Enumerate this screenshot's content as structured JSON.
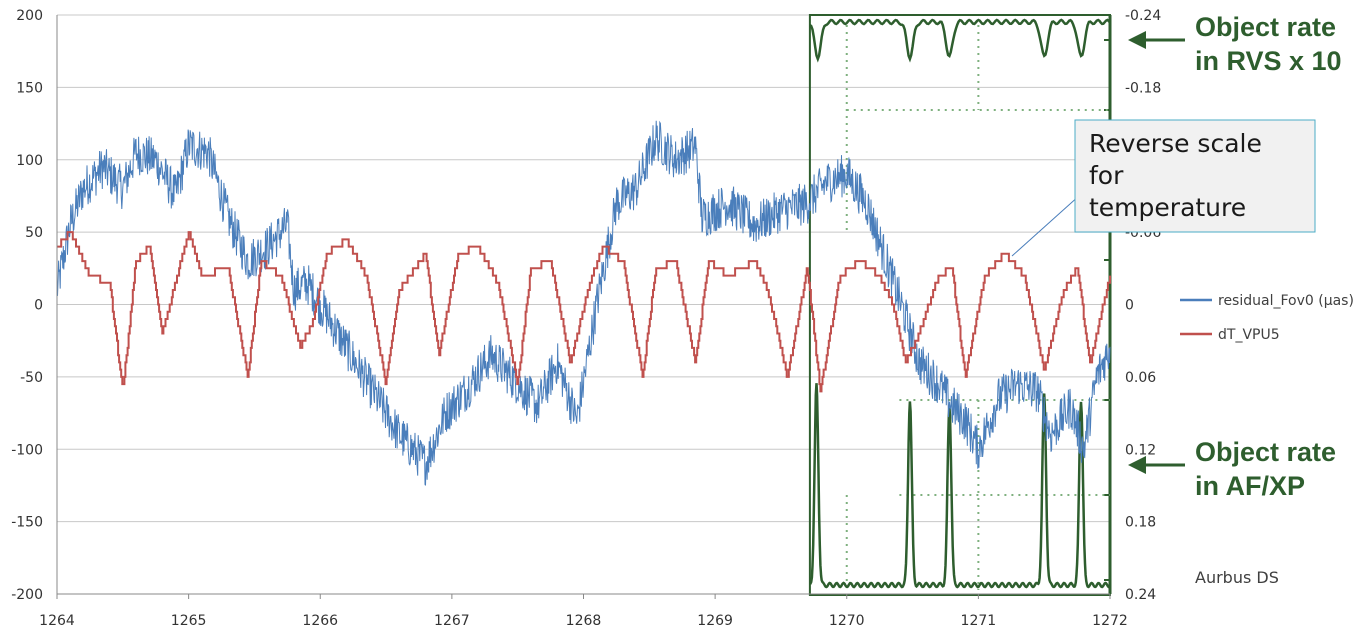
{
  "chart_data": {
    "type": "line",
    "x_ticks": [
      "1264",
      "1265",
      "1266",
      "1267",
      "1268",
      "1269",
      "1270",
      "1271",
      "1272"
    ],
    "xlim": [
      1264,
      1272
    ],
    "y_left_ticks": [
      "200",
      "150",
      "100",
      "50",
      "0",
      "-50",
      "-100",
      "-150",
      "-200"
    ],
    "ylim_left": [
      -200,
      200
    ],
    "y_right_ticks": [
      "-0.24",
      "-0.18",
      "-0.06",
      "0",
      "0.06",
      "0.12",
      "0.18",
      "0.24"
    ],
    "ylim_right_reversed": [
      0.24,
      -0.24
    ],
    "grid": "horizontal",
    "legend_position": "right",
    "series": [
      {
        "name": "residual_Fov0 (µas)",
        "color": "#4a7ebb",
        "axis": "left",
        "x": [
          1264.0,
          1264.1,
          1264.2,
          1264.35,
          1264.5,
          1264.6,
          1264.75,
          1264.9,
          1265.0,
          1265.15,
          1265.3,
          1265.45,
          1265.6,
          1265.75,
          1265.8,
          1265.9,
          1266.0,
          1266.2,
          1266.4,
          1266.6,
          1266.8,
          1266.95,
          1267.1,
          1267.3,
          1267.5,
          1267.65,
          1267.8,
          1267.95,
          1268.1,
          1268.25,
          1268.4,
          1268.55,
          1268.7,
          1268.85,
          1268.9,
          1269.1,
          1269.3,
          1269.5,
          1269.7,
          1269.85,
          1270.0,
          1270.15,
          1270.3,
          1270.45,
          1270.55,
          1270.7,
          1270.8,
          1270.9,
          1271.0,
          1271.15,
          1271.3,
          1271.45,
          1271.55,
          1271.7,
          1271.8,
          1271.9,
          1272.0
        ],
        "values": [
          10,
          55,
          80,
          95,
          80,
          105,
          100,
          75,
          110,
          105,
          60,
          30,
          40,
          55,
          10,
          15,
          0,
          -30,
          -60,
          -90,
          -110,
          -75,
          -60,
          -35,
          -55,
          -70,
          -40,
          -80,
          0,
          70,
          80,
          115,
          100,
          110,
          60,
          70,
          55,
          65,
          70,
          85,
          90,
          70,
          30,
          -10,
          -40,
          -55,
          -70,
          -80,
          -100,
          -65,
          -55,
          -60,
          -90,
          -70,
          -100,
          -50,
          -30
        ]
      },
      {
        "name": "dT_VPU5",
        "color": "#c0504d",
        "axis": "left",
        "x": [
          1264.0,
          1264.1,
          1264.25,
          1264.4,
          1264.5,
          1264.6,
          1264.7,
          1264.8,
          1265.0,
          1265.1,
          1265.3,
          1265.45,
          1265.55,
          1265.7,
          1265.85,
          1265.95,
          1266.05,
          1266.2,
          1266.35,
          1266.5,
          1266.6,
          1266.8,
          1266.9,
          1267.05,
          1267.2,
          1267.35,
          1267.5,
          1267.6,
          1267.75,
          1267.9,
          1268.05,
          1268.15,
          1268.3,
          1268.45,
          1268.55,
          1268.7,
          1268.85,
          1268.95,
          1269.1,
          1269.3,
          1269.4,
          1269.55,
          1269.7,
          1269.8,
          1269.95,
          1270.1,
          1270.25,
          1270.35,
          1270.45,
          1270.55,
          1270.7,
          1270.8,
          1270.9,
          1271.05,
          1271.2,
          1271.35,
          1271.5,
          1271.65,
          1271.75,
          1271.85,
          1272.0
        ],
        "values": [
          40,
          50,
          20,
          15,
          -60,
          30,
          40,
          -20,
          50,
          20,
          25,
          -50,
          30,
          20,
          -30,
          -10,
          35,
          45,
          20,
          -55,
          10,
          35,
          -35,
          35,
          40,
          15,
          -55,
          25,
          30,
          -40,
          15,
          40,
          30,
          -50,
          25,
          30,
          -40,
          30,
          20,
          30,
          10,
          -50,
          25,
          -60,
          20,
          30,
          20,
          0,
          -40,
          -20,
          20,
          25,
          -50,
          20,
          35,
          20,
          -45,
          10,
          25,
          -40,
          20
        ]
      }
    ],
    "annotations": {
      "callout": "Reverse scale for temperature",
      "callout_lines": [
        "Reverse scale",
        "for",
        "temperature"
      ],
      "rvs_label": [
        "Object rate",
        "in RVS x 10"
      ],
      "afxp_label": [
        "Object rate",
        "in AF/XP"
      ],
      "credit": "Aurbus DS"
    },
    "overlay_color": "#2e5e2e"
  }
}
